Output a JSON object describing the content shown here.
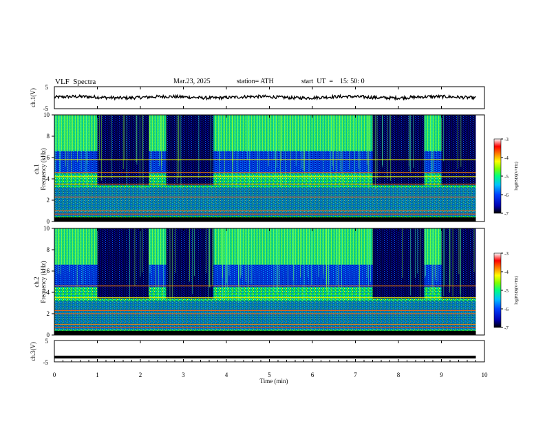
{
  "header": {
    "title": "VLF  Spectra",
    "date": "Mar.23, 2025",
    "station": "station= ATH",
    "start": "start  UT  =    15: 50: 0"
  },
  "chart_data": [
    {
      "type": "line",
      "panel": "ch1",
      "ylabel": "ch.1(V)",
      "ylim": [
        -5,
        5
      ],
      "yticks": [
        "5",
        "-5"
      ],
      "xlim": [
        0,
        10
      ],
      "approx_mean": 0.2,
      "color": "#000000"
    },
    {
      "type": "heatmap",
      "panel": "ch1-spectrogram",
      "ylabel": "ch.1\nFrequency  (kHz)",
      "ylim": [
        0,
        10
      ],
      "yticks": [
        "0",
        "2",
        "4",
        "6",
        "8",
        "10"
      ],
      "xlim": [
        0,
        10
      ],
      "xlabel": "Time  (min)",
      "bursts": [
        [
          1.0,
          2.2
        ],
        [
          2.6,
          3.7
        ],
        [
          7.4,
          8.6
        ],
        [
          9.0,
          9.8
        ]
      ],
      "lines_khz": [
        1.0,
        2.3,
        3.5,
        4.2,
        4.6,
        5.8
      ]
    },
    {
      "type": "heatmap",
      "panel": "ch2-spectrogram",
      "ylabel": "ch.2\nFrequency  (kHz)",
      "ylim": [
        0,
        10
      ],
      "yticks": [
        "0",
        "2",
        "4",
        "6",
        "8",
        "10"
      ],
      "xlim": [
        0,
        10
      ],
      "bursts": [
        [
          1.0,
          2.2
        ],
        [
          2.6,
          3.7
        ],
        [
          7.4,
          8.6
        ],
        [
          9.0,
          9.8
        ]
      ],
      "lines_khz": [
        1.0,
        2.0,
        2.3,
        3.5,
        4.6
      ]
    },
    {
      "type": "line",
      "panel": "ch3",
      "ylabel": "ch.3(V)",
      "ylim": [
        -5,
        5
      ],
      "yticks": [
        "5",
        "-5"
      ],
      "xlim": [
        0,
        10
      ],
      "value": -2.8,
      "color": "#000000"
    }
  ],
  "x_axis": {
    "label": "Time  (min)",
    "ticks": [
      "0",
      "1",
      "2",
      "3",
      "4",
      "5",
      "6",
      "7",
      "8",
      "9",
      "10"
    ]
  },
  "colorbar": {
    "label": "log(PSD)(V²/Hz)",
    "ticks": [
      "-3",
      "-4",
      "-5",
      "-6",
      "-7"
    ],
    "range": [
      -7,
      -3
    ],
    "colors": [
      "#000000",
      "#0000b0",
      "#0040ff",
      "#00c0ff",
      "#00ff80",
      "#80ff00",
      "#ffff00",
      "#ff8000",
      "#ff0000",
      "#ffffff"
    ]
  }
}
